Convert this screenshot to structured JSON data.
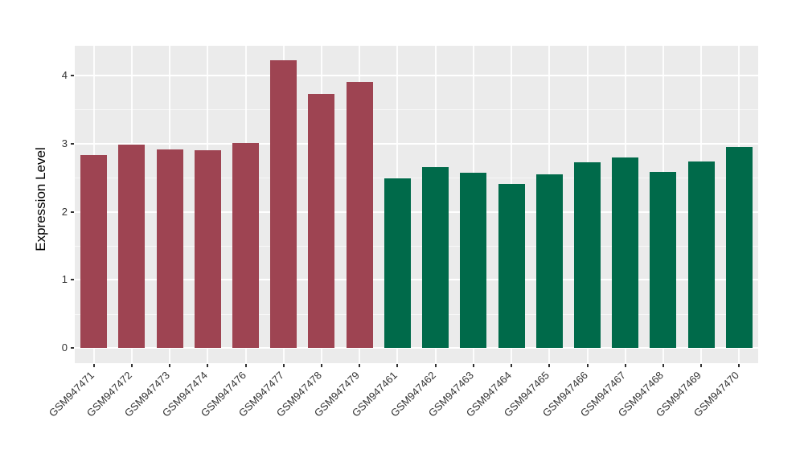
{
  "chart_data": {
    "type": "bar",
    "title": "",
    "xlabel": "",
    "ylabel": "Expression Level",
    "ylim": [
      -0.23,
      4.44
    ],
    "yticks": [
      0,
      1,
      2,
      3,
      4
    ],
    "yminor": [
      0.5,
      1.5,
      2.5,
      3.5
    ],
    "grid": "major+minor, white on gray panel",
    "legend": "none",
    "panel_background": "#EBEBEB",
    "categories": [
      "GSM947471",
      "GSM947472",
      "GSM947473",
      "GSM947474",
      "GSM947476",
      "GSM947477",
      "GSM947478",
      "GSM947479",
      "GSM947461",
      "GSM947462",
      "GSM947463",
      "GSM947464",
      "GSM947465",
      "GSM947466",
      "GSM947467",
      "GSM947468",
      "GSM947469",
      "GSM947470"
    ],
    "values": [
      2.83,
      2.99,
      2.91,
      2.9,
      3.01,
      4.23,
      3.73,
      3.9,
      2.49,
      2.65,
      2.57,
      2.41,
      2.55,
      2.72,
      2.8,
      2.58,
      2.74,
      2.95
    ],
    "colors": [
      "#9E4452",
      "#9E4452",
      "#9E4452",
      "#9E4452",
      "#9E4452",
      "#9E4452",
      "#9E4452",
      "#9E4452",
      "#006A4A",
      "#006A4A",
      "#006A4A",
      "#006A4A",
      "#006A4A",
      "#006A4A",
      "#006A4A",
      "#006A4A",
      "#006A4A",
      "#006A4A"
    ],
    "group_palette": {
      "left_group": "#9E4452",
      "right_group": "#006A4A"
    },
    "axis_text_color": "#333333",
    "x_label_rotation_deg": -45
  }
}
